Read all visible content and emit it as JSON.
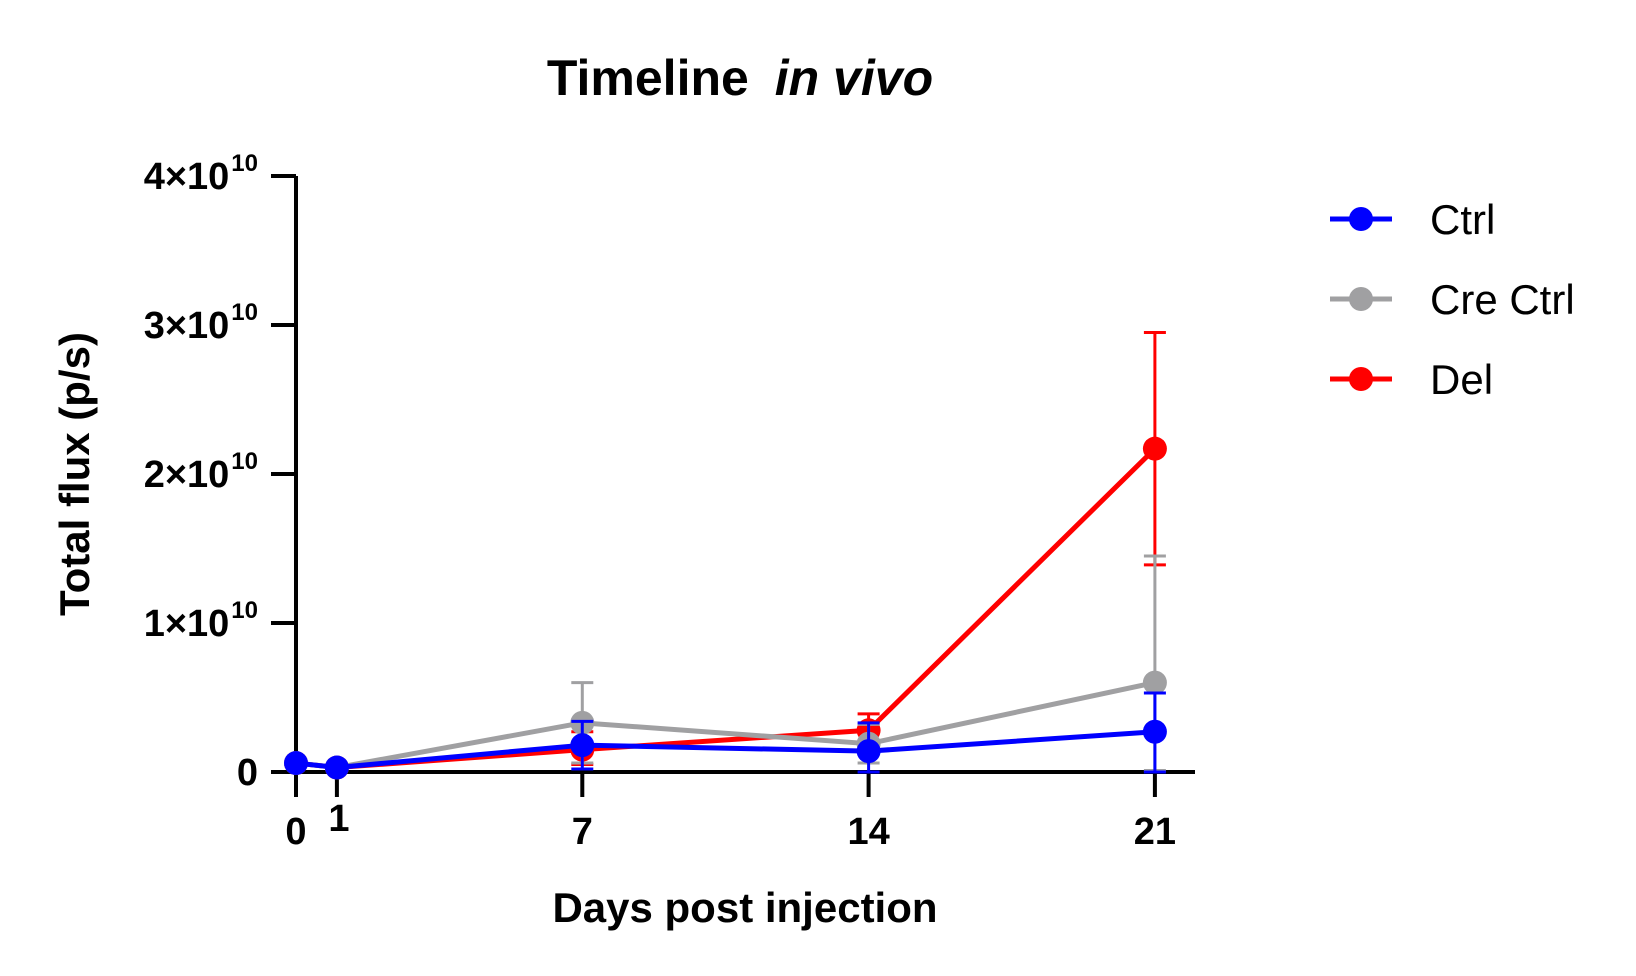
{
  "chart_data": {
    "type": "line",
    "title": "Timeline",
    "title_italic": "in vivo",
    "xlabel": "Days post injection",
    "ylabel": "Total flux (p/s)",
    "x": [
      0,
      1,
      7,
      14,
      21
    ],
    "x_ticks": [
      {
        "value": 0,
        "label": "0"
      },
      {
        "value": 1,
        "label": "1"
      },
      {
        "value": 7,
        "label": "7"
      },
      {
        "value": 14,
        "label": "14"
      },
      {
        "value": 21,
        "label": "21"
      }
    ],
    "xlim": [
      0,
      22
    ],
    "ylim": [
      0,
      40000000000
    ],
    "y_ticks": [
      {
        "value": 0,
        "mant": "0",
        "exp": ""
      },
      {
        "value": 10000000000,
        "mant": "1×10",
        "exp": "10"
      },
      {
        "value": 20000000000,
        "mant": "2×10",
        "exp": "10"
      },
      {
        "value": 30000000000,
        "mant": "3×10",
        "exp": "10"
      },
      {
        "value": 40000000000,
        "mant": "4×10",
        "exp": "10"
      }
    ],
    "legend_position": "top-right",
    "grid": false,
    "series": [
      {
        "name": "Del",
        "color": "#ff0000",
        "values": [
          600000000,
          300000000,
          1500000000,
          2800000000,
          21700000000
        ],
        "err_up": [
          0,
          0,
          1200000000,
          1100000000,
          7800000000
        ],
        "err_down": [
          0,
          0,
          1000000000,
          1000000000,
          7800000000
        ]
      },
      {
        "name": "Cre Ctrl",
        "color": "#a0a0a2",
        "values": [
          600000000,
          300000000,
          3300000000,
          1900000000,
          6000000000
        ],
        "err_up": [
          0,
          0,
          2700000000,
          1300000000,
          8500000000
        ],
        "err_down": [
          0,
          0,
          2700000000,
          1300000000,
          5900000000
        ]
      },
      {
        "name": "Ctrl",
        "color": "#0000ff",
        "values": [
          600000000,
          300000000,
          1800000000,
          1400000000,
          2700000000
        ],
        "err_up": [
          0,
          0,
          1600000000,
          1900000000,
          2600000000
        ],
        "err_down": [
          0,
          0,
          1600000000,
          1400000000,
          2700000000
        ]
      }
    ],
    "legend_order": [
      "Ctrl",
      "Cre Ctrl",
      "Del"
    ]
  }
}
